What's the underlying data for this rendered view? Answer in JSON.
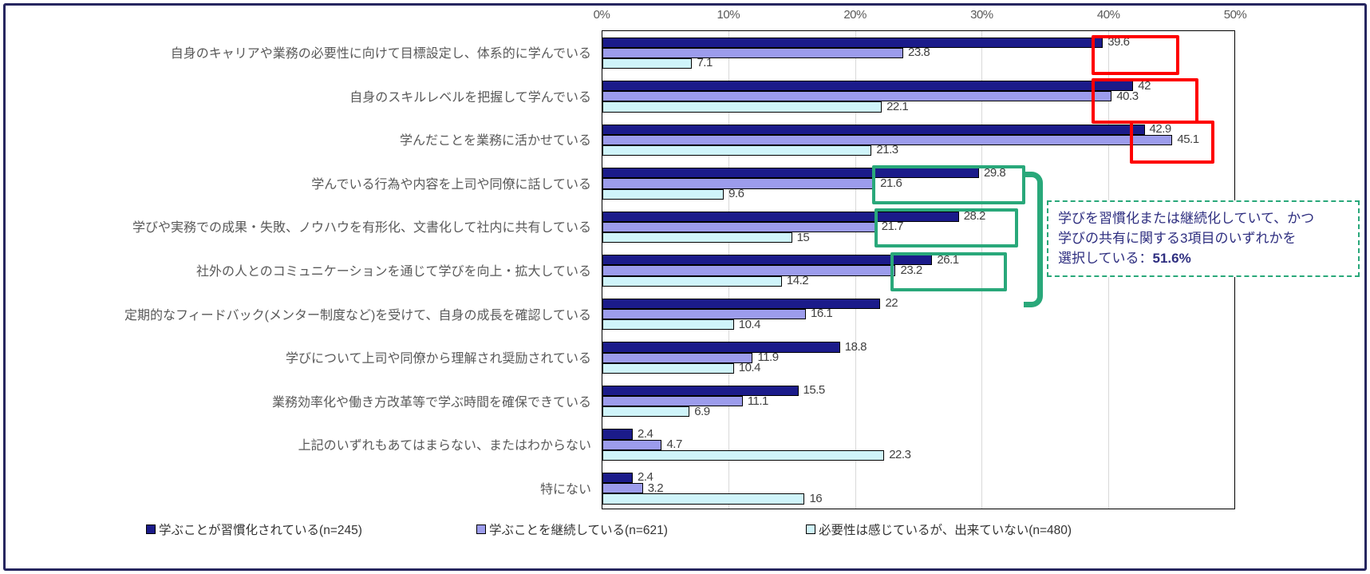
{
  "colors": {
    "series_dark_blue": "#1b1b8a",
    "series_light_purple": "#9c9cec",
    "series_pale_cyan": "#cff4fa",
    "highlight_red": "#fe0000",
    "highlight_green": "#29a87a",
    "frame_navy": "#26265f",
    "annotation_text_navy": "#2f2f80",
    "axis_text_gray": "#595959",
    "value_text_gray": "#404040"
  },
  "chart_data": {
    "type": "bar",
    "orientation": "horizontal",
    "title": "",
    "xlabel": "",
    "ylabel": "",
    "xlim": [
      0,
      50
    ],
    "grid": true,
    "legend_position": "bottom",
    "x_ticks": [
      "0%",
      "10%",
      "20%",
      "30%",
      "40%",
      "50%"
    ],
    "categories": [
      "自身のキャリアや業務の必要性に向けて目標設定し、体系的に学んでいる",
      "自身のスキルレベルを把握して学んでいる",
      "学んだことを業務に活かせている",
      "学んでいる行為や内容を上司や同僚に話している",
      "学びや実務での成果・失敗、ノウハウを有形化、文書化して社内に共有している",
      "社外の人とのコミュニケーションを通じて学びを向上・拡大している",
      "定期的なフィードバック(メンター制度など)を受けて、自身の成長を確認している",
      "学びについて上司や同僚から理解され奨励されている",
      "業務効率化や働き方改革等で学ぶ時間を確保できている",
      "上記のいずれもあてはまらない、またはわからない",
      "特にない"
    ],
    "series": [
      {
        "name": "学ぶことが習慣化されている(n=245)",
        "color": "#1b1b8a",
        "values": [
          39.6,
          42,
          42.9,
          29.8,
          28.2,
          26.1,
          22,
          18.8,
          15.5,
          2.4,
          2.4
        ],
        "value_labels": [
          "39.6",
          "42",
          "42.9",
          "29.8",
          "28.2",
          "26.1",
          "22",
          "18.8",
          "15.5",
          "2.4",
          "2.4"
        ]
      },
      {
        "name": "学ぶことを継続している(n=621)",
        "color": "#9c9cec",
        "values": [
          23.8,
          40.3,
          45.1,
          21.6,
          21.7,
          23.2,
          16.1,
          11.9,
          11.1,
          4.7,
          3.2
        ],
        "value_labels": [
          "23.8",
          "40.3",
          "45.1",
          "21.6",
          "21.7",
          "23.2",
          "16.1",
          "11.9",
          "11.1",
          "4.7",
          "3.2"
        ]
      },
      {
        "name": "必要性は感じているが、出来ていない(n=480)",
        "color": "#cff4fa",
        "values": [
          7.1,
          22.1,
          21.3,
          9.6,
          15,
          14.2,
          10.4,
          10.4,
          6.9,
          22.3,
          16
        ],
        "value_labels": [
          "7.1",
          "22.1",
          "21.3",
          "9.6",
          "15",
          "14.2",
          "10.4",
          "10.4",
          "6.9",
          "22.3",
          "16"
        ]
      }
    ],
    "annotations": [
      "学びを習慣化または継続化していて、かつ学びの共有に関する3項目のいずれかを選択している：51.6%"
    ]
  },
  "annotation": {
    "line1": "学びを習慣化または継続化していて、かつ",
    "line2": "学びの共有に関する3項目のいずれかを",
    "line3_prefix": "選択している：",
    "line3_bold": "51.6%"
  }
}
